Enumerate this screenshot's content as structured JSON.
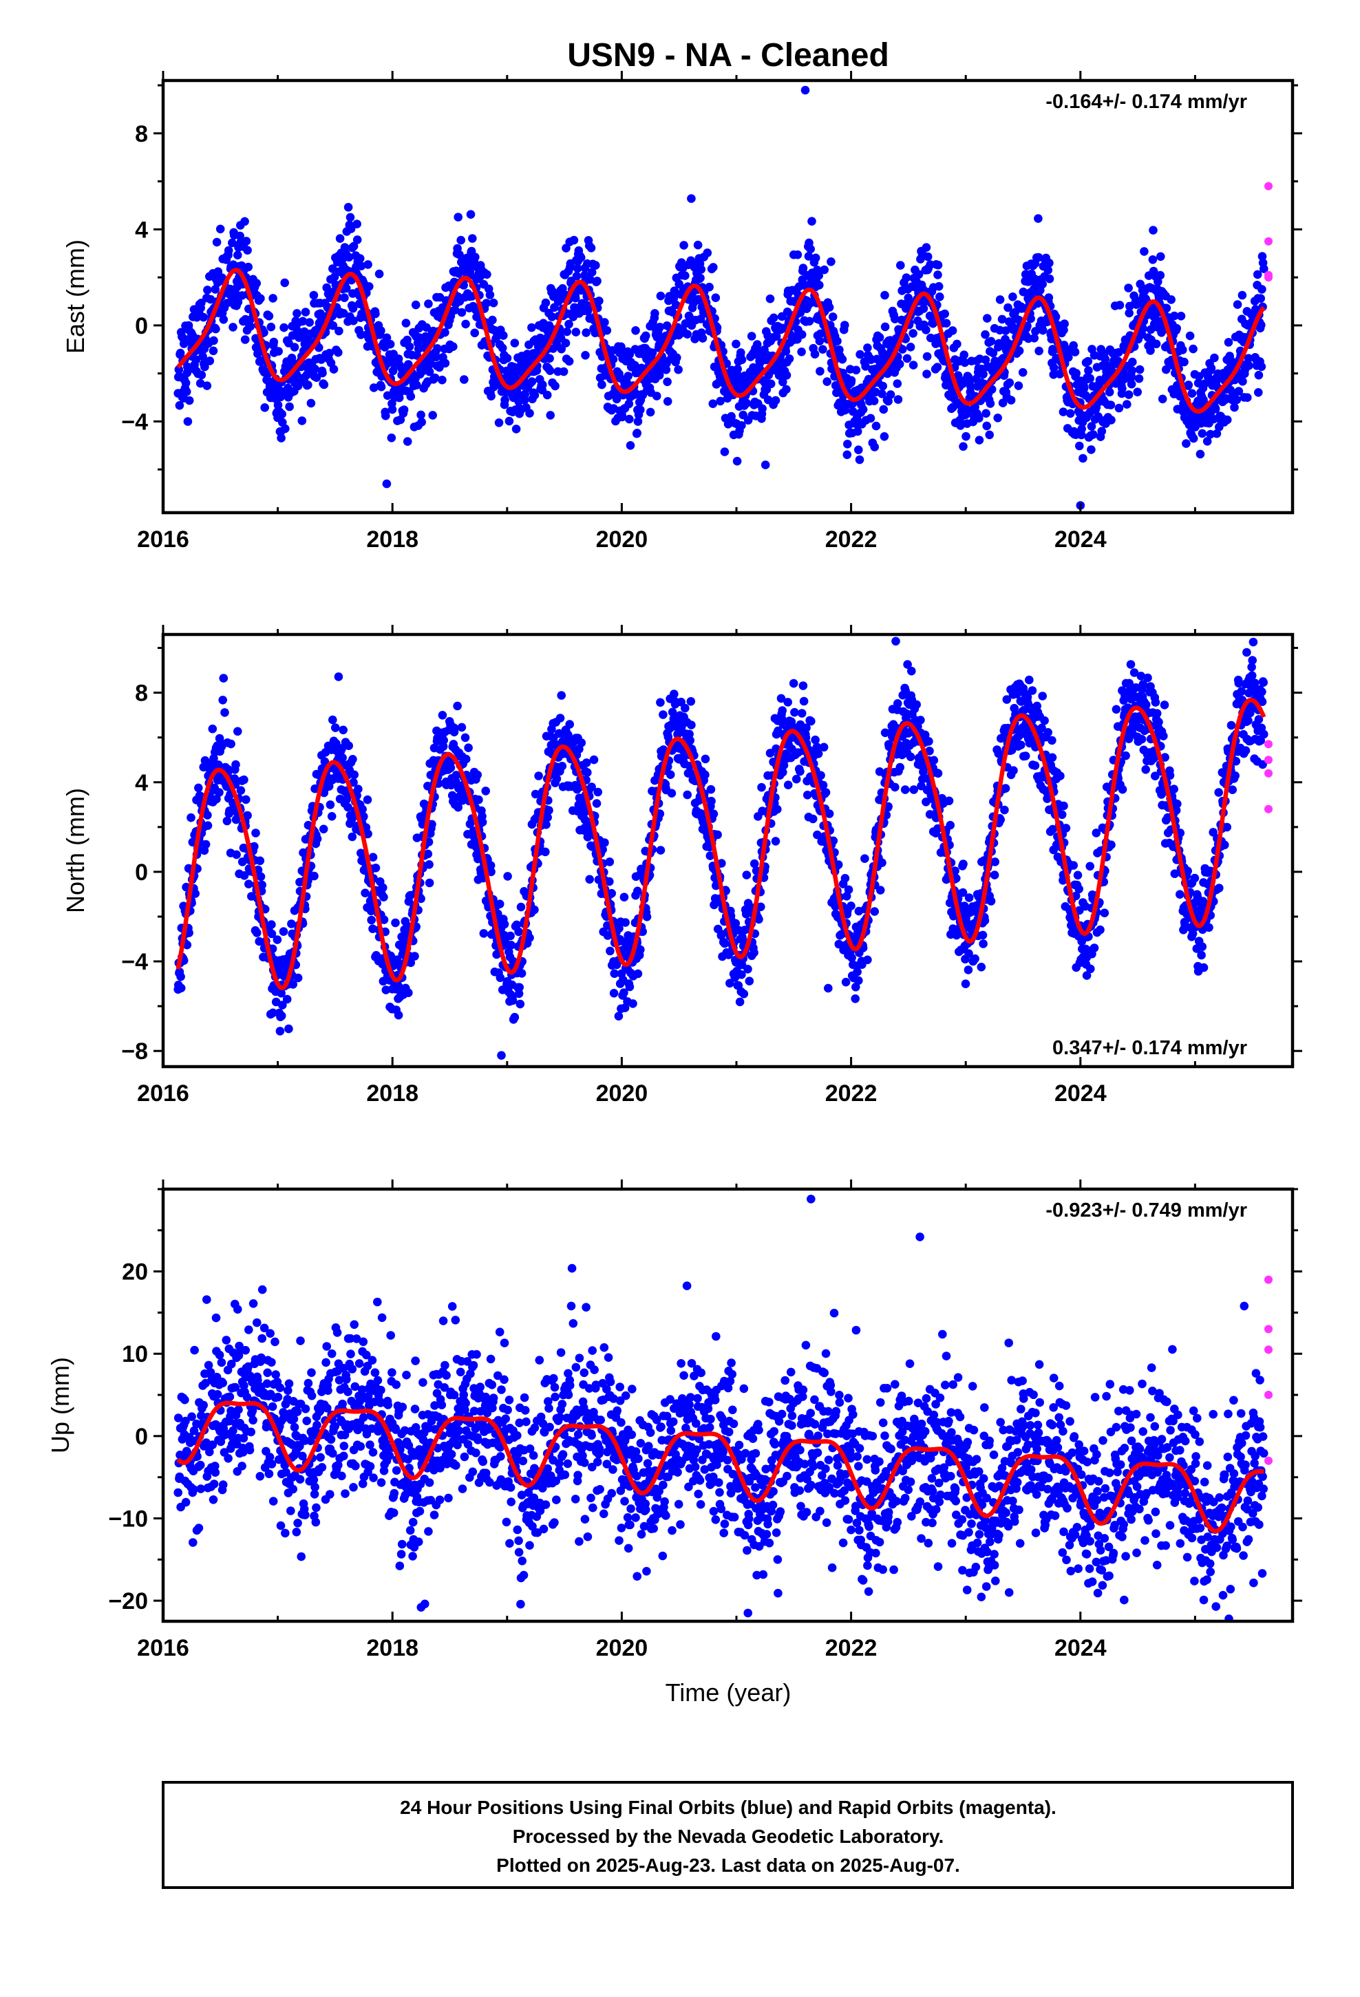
{
  "title": "USN9  - NA - Cleaned",
  "footer": {
    "line1": "24 Hour Positions Using Final Orbits (blue) and Rapid Orbits (magenta).",
    "line2": "Processed by the Nevada Geodetic Laboratory.",
    "line3": "Plotted on 2025-Aug-23. Last data on 2025-Aug-07."
  },
  "colors": {
    "final_orbits": "#0000ff",
    "rapid_orbits": "#ff33ff",
    "model": "#ff0000",
    "frame": "#000000"
  },
  "chart_data": [
    {
      "type": "scatter",
      "ylabel": "East (mm)",
      "xlabel": "",
      "rate_label": "-0.164+/- 0.174 mm/yr",
      "rate_position": "top-right",
      "xlim": [
        2016.0,
        2025.85
      ],
      "ylim": [
        -7.8,
        10.2
      ],
      "x_ticks": [
        2016,
        2018,
        2020,
        2022,
        2024
      ],
      "y_ticks": [
        -4,
        0,
        4,
        8
      ],
      "data_start": 2016.13,
      "data_end": 2025.6,
      "model": {
        "trend_start": -0.1,
        "rate": -0.164,
        "annual_amp": 2.1,
        "annual_phase": 0.35,
        "semiannual_amp": 0.5,
        "semiannual_phase": 0.55,
        "noise_sd": 1.05
      },
      "rapid_points": [
        5.8,
        3.5,
        2.1,
        2.0
      ],
      "outliers": [
        [
          2024.0,
          -7.5
        ],
        [
          2021.6,
          9.8
        ],
        [
          2017.95,
          -6.6
        ]
      ]
    },
    {
      "type": "scatter",
      "ylabel": "North (mm)",
      "xlabel": "",
      "rate_label": "0.347+/- 0.174 mm/yr",
      "rate_position": "bottom-right",
      "xlim": [
        2016.0,
        2025.85
      ],
      "ylim": [
        -8.7,
        10.6
      ],
      "x_ticks": [
        2016,
        2018,
        2020,
        2022,
        2024
      ],
      "y_ticks": [
        -8,
        -4,
        0,
        4,
        8
      ],
      "data_start": 2016.13,
      "data_end": 2025.6,
      "model": {
        "trend_start": -0.1,
        "rate": 0.347,
        "annual_amp": 4.9,
        "annual_phase": 0.27,
        "semiannual_amp": 0.6,
        "semiannual_phase": 0.2,
        "noise_sd": 1.1
      },
      "rapid_points": [
        5.7,
        5.0,
        4.4,
        2.8
      ],
      "outliers": [
        [
          2021.8,
          -5.2
        ],
        [
          2025.45,
          9.8
        ],
        [
          2018.95,
          -8.2
        ]
      ]
    },
    {
      "type": "scatter",
      "ylabel": "Up (mm)",
      "xlabel": "Time (year)",
      "rate_label": "-0.923+/- 0.749 mm/yr",
      "rate_position": "top-right",
      "xlim": [
        2016.0,
        2025.85
      ],
      "ylim": [
        -22.5,
        30.0
      ],
      "x_ticks": [
        2016,
        2018,
        2020,
        2022,
        2024
      ],
      "y_ticks": [
        -20,
        -10,
        0,
        10,
        20
      ],
      "data_start": 2016.13,
      "data_end": 2025.6,
      "model": {
        "trend_start": 1.8,
        "rate": -0.923,
        "annual_amp": 3.8,
        "annual_phase": 0.43,
        "semiannual_amp": 1.2,
        "semiannual_phase": 0.3,
        "noise_sd": 5.0
      },
      "rapid_points": [
        19.0,
        13.0,
        10.5,
        5.0,
        -3.0
      ],
      "outliers": [
        [
          2021.65,
          28.8
        ],
        [
          2021.1,
          -21.5
        ],
        [
          2018.25,
          -20.8
        ],
        [
          2022.6,
          24.2
        ]
      ]
    }
  ]
}
